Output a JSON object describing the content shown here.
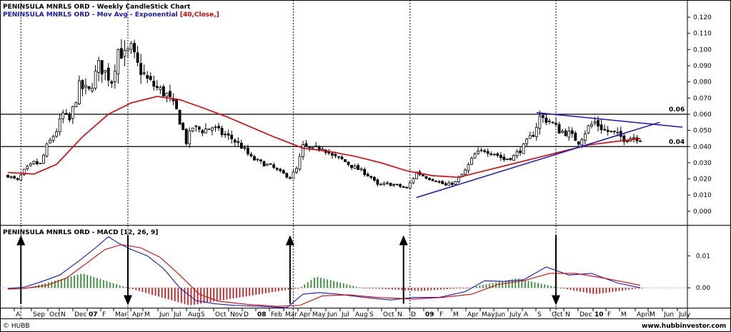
{
  "colors": {
    "candle": "#000000",
    "ema": "#e00000",
    "ema_param": "#e00000",
    "trend": "#1515c8",
    "divider": "#00008b",
    "hist_up": "#1a8a1a",
    "hist_down": "#e00000",
    "arrow": "#000000",
    "title2": "#1515c8"
  },
  "header": {
    "title": "PENINSULA MNRLS ORD - Weekly CandleStick Chart",
    "ema_label": "PENINSULA MNRLS ORD - Mov Avg - Exponential",
    "ema_params": "[40,Close,]"
  },
  "macd_panel": {
    "title": "PENINSULA MNRLS ORD - MACD [12, 26, 9]"
  },
  "footer": {
    "left": "© HUBB",
    "right": "www.hubbinvestor.com"
  },
  "x_labels": [
    {
      "label": "A",
      "x": 24
    },
    {
      "label": "Sep",
      "x": 48
    },
    {
      "label": "Oct",
      "x": 71
    },
    {
      "label": "N",
      "x": 87
    },
    {
      "label": "Dec",
      "x": 106
    },
    {
      "label": "07",
      "x": 126,
      "bold": true
    },
    {
      "label": "F",
      "x": 145
    },
    {
      "label": "Mar",
      "x": 163
    },
    {
      "label": "Apr",
      "x": 187
    },
    {
      "label": "M",
      "x": 204
    },
    {
      "label": "Jun",
      "x": 225
    },
    {
      "label": "Jul",
      "x": 245
    },
    {
      "label": "Aug",
      "x": 265
    },
    {
      "label": "S",
      "x": 283
    },
    {
      "label": "Oct",
      "x": 303
    },
    {
      "label": "Nov",
      "x": 324
    },
    {
      "label": "D",
      "x": 343
    },
    {
      "label": "08",
      "x": 362,
      "bold": true
    },
    {
      "label": "Feb",
      "x": 381
    },
    {
      "label": "Mar",
      "x": 401
    },
    {
      "label": "Apr",
      "x": 421
    },
    {
      "label": "May",
      "x": 439
    },
    {
      "label": "Jun",
      "x": 460
    },
    {
      "label": "Jul",
      "x": 480
    },
    {
      "label": "Aug",
      "x": 499
    },
    {
      "label": "S",
      "x": 519
    },
    {
      "label": "Oct",
      "x": 538
    },
    {
      "label": "N",
      "x": 558
    },
    {
      "label": "D",
      "x": 577
    },
    {
      "label": "09",
      "x": 597,
      "bold": true
    },
    {
      "label": "F",
      "x": 617
    },
    {
      "label": "M",
      "x": 636
    },
    {
      "label": "Apr",
      "x": 656
    },
    {
      "label": "May",
      "x": 676
    },
    {
      "label": "Jun",
      "x": 695
    },
    {
      "label": "July",
      "x": 715
    },
    {
      "label": "A",
      "x": 735
    },
    {
      "label": "S",
      "x": 754
    },
    {
      "label": "Oct",
      "x": 774
    },
    {
      "label": "N",
      "x": 793
    },
    {
      "label": "Dec",
      "x": 813
    },
    {
      "label": "10",
      "x": 834,
      "bold": true
    },
    {
      "label": "F",
      "x": 852
    },
    {
      "label": "M",
      "x": 871
    },
    {
      "label": "April",
      "x": 893
    },
    {
      "label": "M",
      "x": 911
    },
    {
      "label": "Jun",
      "x": 931
    },
    {
      "label": "July",
      "x": 952
    }
  ],
  "chart_data": [
    {
      "type": "candlestick",
      "title": "PENINSULA MNRLS ORD - Weekly CandleStick Chart",
      "ylim": [
        -0.008,
        0.124
      ],
      "y_ticks": [
        0.0,
        0.01,
        0.02,
        0.03,
        0.04,
        0.05,
        0.06,
        0.07,
        0.08,
        0.09,
        0.1,
        0.11,
        0.12
      ],
      "horizontal_lines": [
        {
          "value": 0.06,
          "label": "0.06"
        },
        {
          "value": 0.04,
          "label": "0.04"
        }
      ],
      "close_path": [
        {
          "d": "2006-07-30",
          "c": 0.022
        },
        {
          "d": "2006-08-20",
          "c": 0.019
        },
        {
          "d": "2006-09-03",
          "c": 0.025
        },
        {
          "d": "2006-09-24",
          "c": 0.03
        },
        {
          "d": "2006-10-08",
          "c": 0.029
        },
        {
          "d": "2006-10-22",
          "c": 0.04
        },
        {
          "d": "2006-11-12",
          "c": 0.05
        },
        {
          "d": "2006-11-26",
          "c": 0.06
        },
        {
          "d": "2006-12-10",
          "c": 0.056
        },
        {
          "d": "2006-12-31",
          "c": 0.077
        },
        {
          "d": "2007-01-21",
          "c": 0.074
        },
        {
          "d": "2007-02-11",
          "c": 0.09
        },
        {
          "d": "2007-02-25",
          "c": 0.086
        },
        {
          "d": "2007-03-11",
          "c": 0.081
        },
        {
          "d": "2007-03-25",
          "c": 0.1
        },
        {
          "d": "2007-04-08",
          "c": 0.096
        },
        {
          "d": "2007-04-22",
          "c": 0.1
        },
        {
          "d": "2007-05-06",
          "c": 0.09
        },
        {
          "d": "2007-05-27",
          "c": 0.081
        },
        {
          "d": "2007-06-17",
          "c": 0.076
        },
        {
          "d": "2007-07-08",
          "c": 0.072
        },
        {
          "d": "2007-07-29",
          "c": 0.062
        },
        {
          "d": "2007-08-12",
          "c": 0.05
        },
        {
          "d": "2007-08-19",
          "c": 0.043
        },
        {
          "d": "2007-09-02",
          "c": 0.052
        },
        {
          "d": "2007-09-23",
          "c": 0.05
        },
        {
          "d": "2007-10-14",
          "c": 0.052
        },
        {
          "d": "2007-11-04",
          "c": 0.048
        },
        {
          "d": "2007-11-25",
          "c": 0.045
        },
        {
          "d": "2007-12-16",
          "c": 0.04
        },
        {
          "d": "2008-01-06",
          "c": 0.033
        },
        {
          "d": "2008-01-27",
          "c": 0.03
        },
        {
          "d": "2008-02-17",
          "c": 0.028
        },
        {
          "d": "2008-03-09",
          "c": 0.024
        },
        {
          "d": "2008-03-30",
          "c": 0.021
        },
        {
          "d": "2008-04-13",
          "c": 0.026
        },
        {
          "d": "2008-04-27",
          "c": 0.04
        },
        {
          "d": "2008-05-18",
          "c": 0.038
        },
        {
          "d": "2008-06-08",
          "c": 0.04
        },
        {
          "d": "2008-06-29",
          "c": 0.034
        },
        {
          "d": "2008-07-20",
          "c": 0.032
        },
        {
          "d": "2008-08-10",
          "c": 0.028
        },
        {
          "d": "2008-08-31",
          "c": 0.025
        },
        {
          "d": "2008-09-21",
          "c": 0.021
        },
        {
          "d": "2008-10-05",
          "c": 0.016
        },
        {
          "d": "2008-10-26",
          "c": 0.017
        },
        {
          "d": "2008-11-16",
          "c": 0.016
        },
        {
          "d": "2008-12-07",
          "c": 0.014
        },
        {
          "d": "2008-12-28",
          "c": 0.024
        },
        {
          "d": "2009-01-18",
          "c": 0.021
        },
        {
          "d": "2009-02-08",
          "c": 0.019
        },
        {
          "d": "2009-03-01",
          "c": 0.016
        },
        {
          "d": "2009-03-22",
          "c": 0.018
        },
        {
          "d": "2009-04-12",
          "c": 0.025
        },
        {
          "d": "2009-05-03",
          "c": 0.035
        },
        {
          "d": "2009-05-24",
          "c": 0.038
        },
        {
          "d": "2009-06-14",
          "c": 0.036
        },
        {
          "d": "2009-07-05",
          "c": 0.032
        },
        {
          "d": "2009-07-26",
          "c": 0.034
        },
        {
          "d": "2009-08-16",
          "c": 0.04
        },
        {
          "d": "2009-09-06",
          "c": 0.048
        },
        {
          "d": "2009-09-20",
          "c": 0.058
        },
        {
          "d": "2009-10-11",
          "c": 0.056
        },
        {
          "d": "2009-11-01",
          "c": 0.05
        },
        {
          "d": "2009-11-22",
          "c": 0.048
        },
        {
          "d": "2009-12-13",
          "c": 0.043
        },
        {
          "d": "2010-01-03",
          "c": 0.052
        },
        {
          "d": "2010-01-17",
          "c": 0.055
        },
        {
          "d": "2010-02-07",
          "c": 0.05
        },
        {
          "d": "2010-02-28",
          "c": 0.048
        },
        {
          "d": "2010-03-21",
          "c": 0.045
        },
        {
          "d": "2010-04-11",
          "c": 0.046
        },
        {
          "d": "2010-04-25",
          "c": 0.045
        }
      ],
      "ema_path": [
        {
          "d": "2006-07-30",
          "v": 0.024
        },
        {
          "d": "2006-09-24",
          "v": 0.023
        },
        {
          "d": "2006-11-12",
          "v": 0.029
        },
        {
          "d": "2007-01-07",
          "v": 0.046
        },
        {
          "d": "2007-03-04",
          "v": 0.06
        },
        {
          "d": "2007-04-22",
          "v": 0.067
        },
        {
          "d": "2007-06-17",
          "v": 0.071
        },
        {
          "d": "2007-08-05",
          "v": 0.069
        },
        {
          "d": "2007-09-23",
          "v": 0.064
        },
        {
          "d": "2007-11-18",
          "v": 0.058
        },
        {
          "d": "2008-01-06",
          "v": 0.052
        },
        {
          "d": "2008-02-24",
          "v": 0.046
        },
        {
          "d": "2008-04-27",
          "v": 0.039
        },
        {
          "d": "2008-06-22",
          "v": 0.037
        },
        {
          "d": "2008-08-17",
          "v": 0.034
        },
        {
          "d": "2008-10-12",
          "v": 0.03
        },
        {
          "d": "2008-12-07",
          "v": 0.025
        },
        {
          "d": "2009-02-01",
          "v": 0.022
        },
        {
          "d": "2009-03-29",
          "v": 0.021
        },
        {
          "d": "2009-05-24",
          "v": 0.025
        },
        {
          "d": "2009-07-19",
          "v": 0.029
        },
        {
          "d": "2009-09-13",
          "v": 0.033
        },
        {
          "d": "2009-11-08",
          "v": 0.037
        },
        {
          "d": "2010-01-03",
          "v": 0.041
        },
        {
          "d": "2010-02-28",
          "v": 0.043
        },
        {
          "d": "2010-04-25",
          "v": 0.045
        }
      ],
      "trendlines": [
        {
          "from": {
            "d": "2008-12-28",
            "v": 0.0085
          },
          "to": {
            "d": "2010-06-06",
            "v": 0.055
          }
        },
        {
          "from": {
            "d": "2009-09-13",
            "v": 0.061
          },
          "to": {
            "d": "2010-07-25",
            "v": 0.052
          }
        }
      ]
    },
    {
      "type": "macd",
      "title": "PENINSULA MNRLS ORD - MACD [12, 26, 9]",
      "ylim": [
        -0.006,
        0.019
      ],
      "y_ticks": [
        0.0,
        0.01
      ],
      "macd": [
        {
          "d": "2006-07-30",
          "v": -0.0002
        },
        {
          "d": "2006-09-03",
          "v": 0.0002
        },
        {
          "d": "2006-10-08",
          "v": 0.0018
        },
        {
          "d": "2006-11-19",
          "v": 0.004
        },
        {
          "d": "2006-12-31",
          "v": 0.0085
        },
        {
          "d": "2007-02-04",
          "v": 0.0125
        },
        {
          "d": "2007-03-04",
          "v": 0.016
        },
        {
          "d": "2007-03-25",
          "v": 0.014
        },
        {
          "d": "2007-04-22",
          "v": 0.012
        },
        {
          "d": "2007-05-27",
          "v": 0.01
        },
        {
          "d": "2007-07-01",
          "v": 0.006
        },
        {
          "d": "2007-08-05",
          "v": 0.0
        },
        {
          "d": "2007-09-09",
          "v": -0.004
        },
        {
          "d": "2007-10-21",
          "v": -0.005
        },
        {
          "d": "2007-12-02",
          "v": -0.0055
        },
        {
          "d": "2008-01-27",
          "v": -0.0058
        },
        {
          "d": "2008-03-23",
          "v": -0.0062
        },
        {
          "d": "2008-04-27",
          "v": -0.002
        },
        {
          "d": "2008-06-01",
          "v": -0.0015
        },
        {
          "d": "2008-07-13",
          "v": -0.002
        },
        {
          "d": "2008-09-07",
          "v": -0.003
        },
        {
          "d": "2008-11-02",
          "v": -0.0038
        },
        {
          "d": "2008-12-21",
          "v": -0.003
        },
        {
          "d": "2009-02-15",
          "v": -0.003
        },
        {
          "d": "2009-04-12",
          "v": -0.0012
        },
        {
          "d": "2009-05-24",
          "v": 0.0022
        },
        {
          "d": "2009-07-05",
          "v": 0.002
        },
        {
          "d": "2009-08-16",
          "v": 0.0025
        },
        {
          "d": "2009-10-04",
          "v": 0.0065
        },
        {
          "d": "2009-11-22",
          "v": 0.004
        },
        {
          "d": "2010-01-10",
          "v": 0.0045
        },
        {
          "d": "2010-03-07",
          "v": 0.0015
        },
        {
          "d": "2010-04-25",
          "v": 0.0
        }
      ],
      "signal": [
        {
          "d": "2006-07-30",
          "v": -0.0004
        },
        {
          "d": "2006-09-03",
          "v": -0.0002
        },
        {
          "d": "2006-10-22",
          "v": 0.0008
        },
        {
          "d": "2006-12-03",
          "v": 0.003
        },
        {
          "d": "2007-01-14",
          "v": 0.0075
        },
        {
          "d": "2007-02-25",
          "v": 0.012
        },
        {
          "d": "2007-04-01",
          "v": 0.0135
        },
        {
          "d": "2007-05-13",
          "v": 0.0125
        },
        {
          "d": "2007-06-24",
          "v": 0.0095
        },
        {
          "d": "2007-08-05",
          "v": 0.004
        },
        {
          "d": "2007-09-16",
          "v": -0.002
        },
        {
          "d": "2007-10-28",
          "v": -0.0042
        },
        {
          "d": "2007-12-30",
          "v": -0.0052
        },
        {
          "d": "2008-03-02",
          "v": -0.0058
        },
        {
          "d": "2008-04-20",
          "v": -0.0055
        },
        {
          "d": "2008-06-08",
          "v": -0.0025
        },
        {
          "d": "2008-08-03",
          "v": -0.0022
        },
        {
          "d": "2008-10-05",
          "v": -0.003
        },
        {
          "d": "2008-12-21",
          "v": -0.0035
        },
        {
          "d": "2009-02-22",
          "v": -0.003
        },
        {
          "d": "2009-04-26",
          "v": -0.002
        },
        {
          "d": "2009-06-21",
          "v": 0.001
        },
        {
          "d": "2009-08-16",
          "v": 0.0022
        },
        {
          "d": "2009-10-11",
          "v": 0.0045
        },
        {
          "d": "2009-12-06",
          "v": 0.0045
        },
        {
          "d": "2010-02-07",
          "v": 0.003
        },
        {
          "d": "2010-04-25",
          "v": 0.0008
        }
      ],
      "histogram_segments": [
        {
          "from": "2006-09-10",
          "to": "2007-04-15",
          "peak": 0.0045,
          "peak_at": "2007-01-07"
        },
        {
          "from": "2007-04-15",
          "to": "2008-04-20",
          "peak": -0.0055,
          "peak_at": "2007-08-26"
        },
        {
          "from": "2008-04-20",
          "to": "2008-08-31",
          "peak": 0.0035,
          "peak_at": "2008-05-25"
        },
        {
          "from": "2008-08-31",
          "to": "2009-04-19",
          "peak": -0.001,
          "peak_at": "2009-01-04"
        },
        {
          "from": "2009-04-19",
          "to": "2009-11-01",
          "peak": 0.003,
          "peak_at": "2009-08-02"
        },
        {
          "from": "2009-11-01",
          "to": "2010-05-02",
          "peak": -0.002,
          "peak_at": "2010-01-17"
        }
      ],
      "signal_arrows": [
        {
          "d": "2006-08-27",
          "direction": "up"
        },
        {
          "d": "2007-04-15",
          "direction": "down"
        },
        {
          "d": "2008-03-30",
          "direction": "up"
        },
        {
          "d": "2008-11-30",
          "direction": "up"
        },
        {
          "d": "2009-10-25",
          "direction": "down"
        }
      ]
    }
  ],
  "vertical_markers": [
    "2006-08-27",
    "2007-04-15",
    "2008-04-06",
    "2008-12-14",
    "2009-10-25"
  ]
}
